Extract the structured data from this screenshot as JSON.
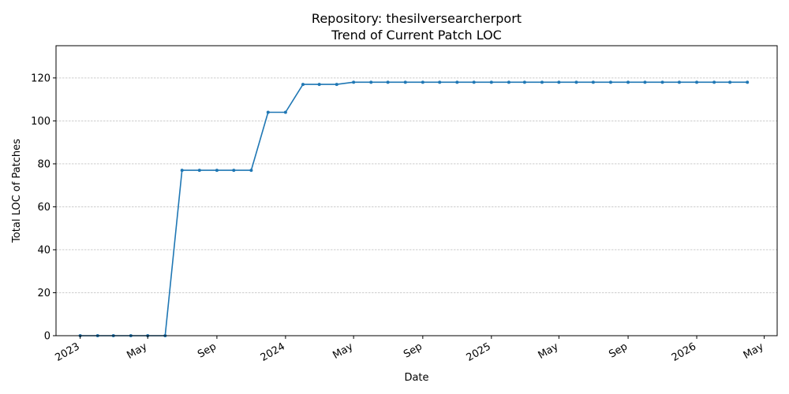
{
  "chart_data": {
    "type": "line",
    "title": "Repository: thesilversearcherport",
    "subtitle": "Trend of Current Patch LOC",
    "xlabel": "Date",
    "ylabel": "Total LOC of Patches",
    "ylim": [
      0,
      135
    ],
    "xlim": [
      "2022-11-19",
      "2026-05-24"
    ],
    "grid": "horizontal dashed",
    "y_ticks": [
      0,
      20,
      40,
      60,
      80,
      100,
      120
    ],
    "x_ticks": [
      {
        "date": "2023-01-01",
        "label": "2023"
      },
      {
        "date": "2023-05-01",
        "label": "May"
      },
      {
        "date": "2023-09-01",
        "label": "Sep"
      },
      {
        "date": "2024-01-01",
        "label": "2024"
      },
      {
        "date": "2024-05-01",
        "label": "May"
      },
      {
        "date": "2024-09-01",
        "label": "Sep"
      },
      {
        "date": "2025-01-01",
        "label": "2025"
      },
      {
        "date": "2025-05-01",
        "label": "May"
      },
      {
        "date": "2025-09-01",
        "label": "Sep"
      },
      {
        "date": "2026-01-01",
        "label": "2026"
      },
      {
        "date": "2026-05-01",
        "label": "May"
      }
    ],
    "series": [
      {
        "color": "#1f77b4",
        "points": [
          [
            "2023-01-01",
            0
          ],
          [
            "2023-02-01",
            0
          ],
          [
            "2023-03-01",
            0
          ],
          [
            "2023-04-01",
            0
          ],
          [
            "2023-05-01",
            0
          ],
          [
            "2023-06-01",
            0
          ],
          [
            "2023-07-01",
            77
          ],
          [
            "2023-08-01",
            77
          ],
          [
            "2023-09-01",
            77
          ],
          [
            "2023-10-01",
            77
          ],
          [
            "2023-11-01",
            77
          ],
          [
            "2023-12-01",
            104
          ],
          [
            "2024-01-01",
            104
          ],
          [
            "2024-02-01",
            117
          ],
          [
            "2024-03-01",
            117
          ],
          [
            "2024-04-01",
            117
          ],
          [
            "2024-05-01",
            118
          ],
          [
            "2024-06-01",
            118
          ],
          [
            "2024-07-01",
            118
          ],
          [
            "2024-08-01",
            118
          ],
          [
            "2024-09-01",
            118
          ],
          [
            "2024-10-01",
            118
          ],
          [
            "2024-11-01",
            118
          ],
          [
            "2024-12-01",
            118
          ],
          [
            "2025-01-01",
            118
          ],
          [
            "2025-02-01",
            118
          ],
          [
            "2025-03-01",
            118
          ],
          [
            "2025-04-01",
            118
          ],
          [
            "2025-05-01",
            118
          ],
          [
            "2025-06-01",
            118
          ],
          [
            "2025-07-01",
            118
          ],
          [
            "2025-08-01",
            118
          ],
          [
            "2025-09-01",
            118
          ],
          [
            "2025-10-01",
            118
          ],
          [
            "2025-11-01",
            118
          ],
          [
            "2025-12-01",
            118
          ],
          [
            "2026-01-01",
            118
          ],
          [
            "2026-02-01",
            118
          ],
          [
            "2026-03-01",
            118
          ],
          [
            "2026-04-01",
            118
          ]
        ]
      }
    ]
  }
}
